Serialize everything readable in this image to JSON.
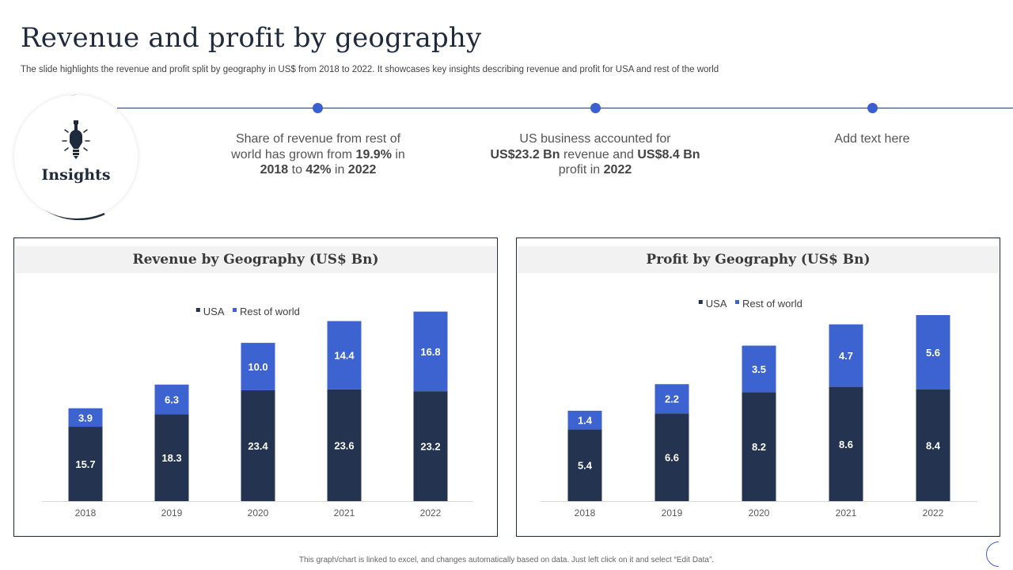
{
  "title": "Revenue and profit by geography",
  "subtitle": "The slide highlights the revenue and profit split by geography in US$ from 2018 to 2022. It showcases key insights describing revenue and profit for USA and rest of the world",
  "insights": {
    "label": "Insights",
    "icon": "lightbulb-icon",
    "items": [
      {
        "parts": [
          "Share of revenue from rest of",
          "world has grown from ",
          "19.9%",
          " in",
          "2018",
          " to ",
          "42%",
          " in ",
          "2022"
        ]
      },
      {
        "parts": [
          "US business accounted for",
          "US$23.2 Bn",
          " revenue and ",
          "US$8.4 Bn",
          "profit in ",
          "2022"
        ]
      },
      {
        "text": "Add text here"
      }
    ]
  },
  "footer": "This graph/chart is linked to excel, and changes automatically based on data. Just left click on it and select “Edit Data”.",
  "colors": {
    "usa": "#243350",
    "row": "#3d63d1",
    "accent": "#3b5fcf",
    "dark": "#1f2a3d"
  },
  "chart_data": [
    {
      "type": "bar",
      "stacked": true,
      "title": "Revenue by Geography (US$ Bn)",
      "categories": [
        "2018",
        "2019",
        "2020",
        "2021",
        "2022"
      ],
      "series": [
        {
          "name": "USA",
          "values": [
            15.7,
            18.3,
            23.4,
            23.6,
            23.2
          ]
        },
        {
          "name": "Rest of world",
          "values": [
            3.9,
            6.3,
            10.0,
            14.4,
            16.8
          ]
        }
      ],
      "labels": {
        "USA": [
          "15.7",
          "18.3",
          "23.4",
          "23.6",
          "23.2"
        ],
        "Rest of world": [
          "3.9",
          "6.3",
          "10.0",
          "14.4",
          "16.8"
        ]
      },
      "ylim": [
        0,
        40
      ],
      "legend": "top-center"
    },
    {
      "type": "bar",
      "stacked": true,
      "title": "Profit by Geography (US$ Bn)",
      "categories": [
        "2018",
        "2019",
        "2020",
        "2021",
        "2022"
      ],
      "series": [
        {
          "name": "USA",
          "values": [
            5.4,
            6.6,
            8.2,
            8.6,
            8.4
          ]
        },
        {
          "name": "Rest of world",
          "values": [
            1.4,
            2.2,
            3.5,
            4.7,
            5.6
          ]
        }
      ],
      "labels": {
        "USA": [
          "5.4",
          "6.6",
          "8.2",
          "8.6",
          "8.4"
        ],
        "Rest of world": [
          "1.4",
          "2.2",
          "3.5",
          "4.7",
          "5.6"
        ]
      },
      "ylim": [
        0,
        14.2
      ],
      "legend": "top-center"
    }
  ]
}
